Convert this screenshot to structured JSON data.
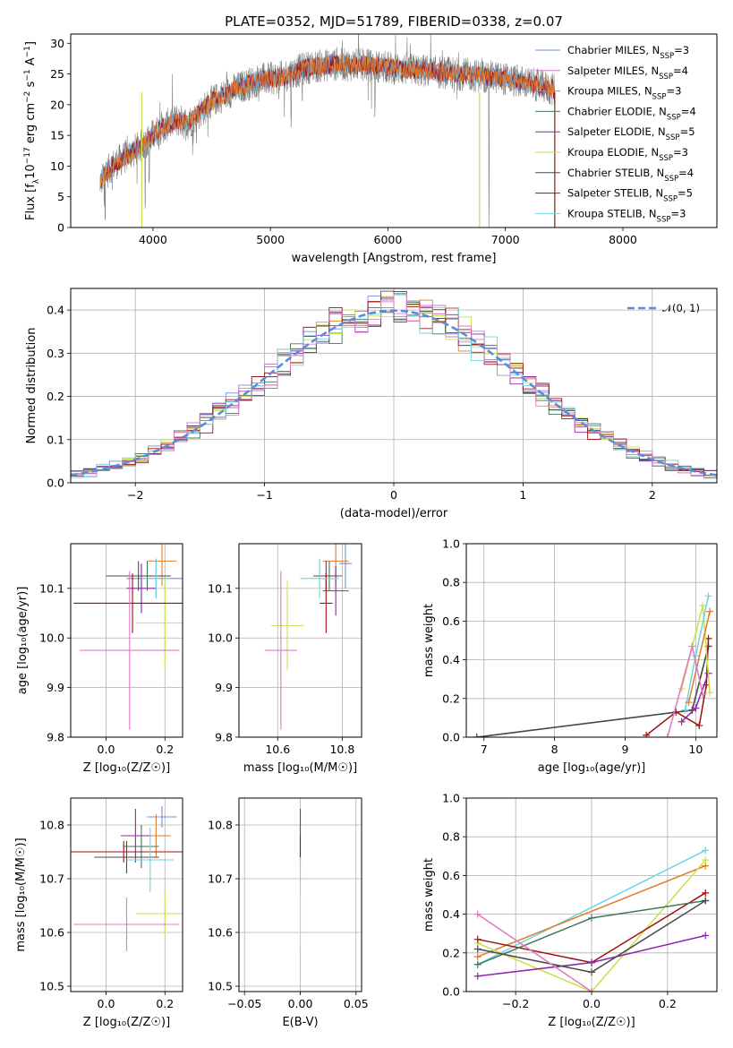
{
  "title": "PLATE=0352, MJD=51789, FIBERID=0338, z=0.07",
  "colors": {
    "Chabrier MILES": "#6f8fd9",
    "Salpeter MILES": "#c97fc7",
    "Kroupa MILES": "#e07c28",
    "Chabrier ELODIE": "#3f7a58",
    "Salpeter ELODIE": "#8e24aa",
    "Kroupa ELODIE": "#c6e24a",
    "Chabrier STELIB": "#4a4a4a",
    "Salpeter STELIB": "#a01010",
    "Kroupa STELIB": "#6fd3df",
    "pink": "#e377c2",
    "gauss": "#5b8dd9",
    "spectrum": "#7f7f7f"
  },
  "chart_data": [
    {
      "id": "spectrum",
      "type": "line",
      "xlabel": "wavelength [Angstrom, rest frame]",
      "ylabel": "Flux [f",
      "ylabel_parts": [
        "Flux [f",
        "λ",
        "10",
        "−17",
        " erg cm",
        "−2",
        " s",
        "−1",
        " A",
        "−1",
        "]"
      ],
      "xlim": [
        3300,
        8800
      ],
      "ylim": [
        0,
        31.5
      ],
      "xticks": [
        4000,
        5000,
        6000,
        7000,
        8000
      ],
      "yticks": [
        0,
        5,
        10,
        15,
        20,
        25,
        30
      ],
      "legend_position": "right",
      "series": [
        {
          "name": "Chabrier MILES",
          "sub": "SSP",
          "n": "3"
        },
        {
          "name": "Salpeter MILES",
          "sub": "SSP",
          "n": "4"
        },
        {
          "name": "Kroupa MILES",
          "sub": "SSP",
          "n": "3"
        },
        {
          "name": "Chabrier ELODIE",
          "sub": "SSP",
          "n": "4"
        },
        {
          "name": "Salpeter ELODIE",
          "sub": "SSP",
          "n": "5"
        },
        {
          "name": "Kroupa ELODIE",
          "sub": "SSP",
          "n": "3"
        },
        {
          "name": "Chabrier STELIB",
          "sub": "SSP",
          "n": "4"
        },
        {
          "name": "Salpeter STELIB",
          "sub": "SSP",
          "n": "5"
        },
        {
          "name": "Kroupa STELIB",
          "sub": "SSP",
          "n": "3"
        }
      ],
      "continuum": {
        "x": [
          3550,
          3650,
          3800,
          3950,
          4050,
          4200,
          4300,
          4500,
          4700,
          4900,
          5100,
          5300,
          5500,
          5800,
          6000,
          6300,
          6600,
          6900,
          7200,
          7400
        ],
        "y": [
          7.5,
          10,
          12,
          14,
          16,
          17.5,
          17,
          20.5,
          22.5,
          24,
          24.5,
          26,
          26.5,
          26.5,
          26,
          25.5,
          25,
          24.5,
          23.5,
          22.5
        ]
      }
    },
    {
      "id": "residuals",
      "type": "histogram",
      "xlabel": "(data-model)/error",
      "ylabel": "Normed distribution",
      "xlim": [
        -2.5,
        2.5
      ],
      "ylim": [
        0,
        0.45
      ],
      "xticks": [
        -2,
        -1,
        0,
        1,
        2
      ],
      "xtick_labels": [
        "−2",
        "−1",
        "0",
        "1",
        "2"
      ],
      "yticks": [
        0.0,
        0.1,
        0.2,
        0.3,
        0.4
      ],
      "ytick_labels": [
        "0.0",
        "0.1",
        "0.2",
        "0.3",
        "0.4"
      ],
      "legend": "𝒩(0, 1)",
      "reference_curve": "gaussian mean 0 sigma 1",
      "bin_width": 0.1
    },
    {
      "id": "age_vs_Z",
      "type": "scatter",
      "xlabel": "Z [log₁₀(Z/Z☉)]",
      "ylabel": "age  [log₁₀(age/yr)]",
      "xlim": [
        -0.12,
        0.26
      ],
      "ylim": [
        9.8,
        10.19
      ],
      "xticks": [
        0.0,
        0.2
      ],
      "yticks": [
        9.8,
        9.9,
        10.0,
        10.1
      ],
      "points": [
        {
          "model": "Chabrier MILES",
          "x": 0.17,
          "y": 10.12,
          "xerr": 0.1,
          "yerr": 0.04
        },
        {
          "model": "Kroupa MILES",
          "x": 0.19,
          "y": 10.155,
          "xerr": 0.05,
          "yerr": 0.05
        },
        {
          "model": "Chabrier ELODIE",
          "x": 0.14,
          "y": 10.125,
          "xerr": 0.06,
          "yerr": 0.03
        },
        {
          "model": "Salpeter ELODIE",
          "x": 0.12,
          "y": 10.1,
          "xerr": 0.05,
          "yerr": 0.05
        },
        {
          "model": "Kroupa ELODIE",
          "x": 0.2,
          "y": 10.03,
          "xerr": 0.1,
          "yerr": 0.09
        },
        {
          "model": "Chabrier STELIB",
          "x": 0.11,
          "y": 10.125,
          "xerr": 0.11,
          "yerr": 0.03
        },
        {
          "model": "Salpeter STELIB",
          "x": 0.09,
          "y": 10.07,
          "xerr": 0.2,
          "yerr": 0.06
        },
        {
          "model": "Kroupa STELIB",
          "x": 0.17,
          "y": 10.12,
          "xerr": 0.05,
          "yerr": 0.04
        },
        {
          "model": "pink",
          "x": 0.08,
          "y": 9.975,
          "xerr": 0.17,
          "yerr": 0.16
        }
      ]
    },
    {
      "id": "age_vs_mass",
      "type": "scatter",
      "xlabel": "mass [log₁₀(M/M☉)]",
      "ylabel": "",
      "xlim": [
        10.48,
        10.86
      ],
      "ylim": [
        9.8,
        10.19
      ],
      "xticks": [
        10.6,
        10.8
      ],
      "yticks": [
        9.8,
        9.9,
        10.0,
        10.1
      ],
      "points": [
        {
          "model": "Chabrier MILES",
          "x": 10.81,
          "y": 10.15,
          "xerr": 0.02,
          "yerr": 0.05
        },
        {
          "model": "Kroupa MILES",
          "x": 10.78,
          "y": 10.155,
          "xerr": 0.04,
          "yerr": 0.05
        },
        {
          "model": "Chabrier ELODIE",
          "x": 10.76,
          "y": 10.125,
          "xerr": 0.04,
          "yerr": 0.03
        },
        {
          "model": "Salpeter ELODIE",
          "x": 10.78,
          "y": 10.095,
          "xerr": 0.04,
          "yerr": 0.05
        },
        {
          "model": "Kroupa ELODIE",
          "x": 10.63,
          "y": 10.025,
          "xerr": 0.05,
          "yerr": 0.09
        },
        {
          "model": "Chabrier STELIB",
          "x": 10.75,
          "y": 10.125,
          "xerr": 0.04,
          "yerr": 0.03
        },
        {
          "model": "Salpeter STELIB",
          "x": 10.75,
          "y": 10.07,
          "xerr": 0.02,
          "yerr": 0.06
        },
        {
          "model": "Kroupa STELIB",
          "x": 10.73,
          "y": 10.12,
          "xerr": 0.06,
          "yerr": 0.04
        },
        {
          "model": "pink",
          "x": 10.61,
          "y": 9.975,
          "xerr": 0.05,
          "yerr": 0.16
        }
      ]
    },
    {
      "id": "weight_vs_age",
      "type": "line",
      "xlabel": "age  [log₁₀(age/yr)]",
      "ylabel": "mass weight",
      "xlim": [
        6.75,
        10.3
      ],
      "ylim": [
        0,
        1.0
      ],
      "xticks": [
        7,
        8,
        9,
        10
      ],
      "yticks": [
        0.0,
        0.2,
        0.4,
        0.6,
        0.8,
        1.0
      ],
      "series": [
        {
          "model": "Chabrier ELODIE",
          "x": [
            6.9,
            9.95,
            10.18
          ],
          "y": [
            0.0,
            0.14,
            0.47
          ]
        },
        {
          "model": "Chabrier STELIB",
          "x": [
            6.9,
            9.95,
            10.18
          ],
          "y": [
            0.0,
            0.14,
            0.47
          ]
        },
        {
          "model": "Salpeter STELIB",
          "x": [
            9.3,
            9.72,
            10.05,
            10.15,
            10.18
          ],
          "y": [
            0.01,
            0.13,
            0.06,
            0.27,
            0.51
          ]
        },
        {
          "model": "Salpeter ELODIE",
          "x": [
            9.8,
            10.0,
            10.18
          ],
          "y": [
            0.08,
            0.15,
            0.33
          ]
        },
        {
          "model": "Kroupa ELODIE",
          "x": [
            9.8,
            10.1,
            10.2
          ],
          "y": [
            0.25,
            0.68,
            0.23
          ]
        },
        {
          "model": "Kroupa STELIB",
          "x": [
            9.85,
            10.0,
            10.18
          ],
          "y": [
            0.14,
            0.42,
            0.73
          ]
        },
        {
          "model": "Kroupa MILES",
          "x": [
            9.9,
            10.2
          ],
          "y": [
            0.18,
            0.65
          ]
        },
        {
          "model": "pink",
          "x": [
            9.6,
            9.95,
            10.1
          ],
          "y": [
            0.0,
            0.47,
            0.22
          ]
        }
      ]
    },
    {
      "id": "mass_vs_Z",
      "type": "scatter",
      "xlabel": "Z [log₁₀(Z/Z☉)]",
      "ylabel": "mass [log₁₀(M/M☉)]",
      "xlim": [
        -0.12,
        0.26
      ],
      "ylim": [
        10.49,
        10.85
      ],
      "xticks": [
        0.0,
        0.2
      ],
      "yticks": [
        10.5,
        10.6,
        10.7,
        10.8
      ],
      "points": [
        {
          "model": "Chabrier MILES",
          "x": 0.19,
          "y": 10.815,
          "xerr": 0.05,
          "yerr": 0.02
        },
        {
          "model": "Kroupa MILES",
          "x": 0.17,
          "y": 10.78,
          "xerr": 0.05,
          "yerr": 0.04
        },
        {
          "model": "Chabrier ELODIE",
          "x": 0.12,
          "y": 10.76,
          "xerr": 0.06,
          "yerr": 0.04
        },
        {
          "model": "Salpeter ELODIE",
          "x": 0.1,
          "y": 10.78,
          "xerr": 0.05,
          "yerr": 0.05
        },
        {
          "model": "Kroupa ELODIE",
          "x": 0.2,
          "y": 10.635,
          "xerr": 0.1,
          "yerr": 0.04
        },
        {
          "model": "Chabrier STELIB",
          "x": 0.07,
          "y": 10.74,
          "xerr": 0.11,
          "yerr": 0.03
        },
        {
          "model": "Salpeter STELIB",
          "x": 0.06,
          "y": 10.75,
          "xerr": 0.2,
          "yerr": 0.02
        },
        {
          "model": "Kroupa STELIB",
          "x": 0.15,
          "y": 10.735,
          "xerr": 0.08,
          "yerr": 0.06
        },
        {
          "model": "pink",
          "x": 0.07,
          "y": 10.615,
          "xerr": 0.18,
          "yerr": 0.05
        }
      ]
    },
    {
      "id": "mass_vs_EBV",
      "type": "scatter",
      "xlabel": "E(B-V)",
      "ylabel": "",
      "xlim": [
        -0.055,
        0.055
      ],
      "ylim": [
        10.49,
        10.85
      ],
      "xticks": [
        -0.05,
        0.0,
        0.05
      ],
      "xtick_labels": [
        "−0.05",
        "0.00",
        "0.05"
      ],
      "yticks": [
        10.5,
        10.6,
        10.7,
        10.8
      ],
      "points": [
        {
          "model": "Salpeter ELODIE",
          "x": 0.0,
          "y": 10.78,
          "xerr": 0.0,
          "yerr": 0.05
        },
        {
          "model": "Kroupa STELIB",
          "x": 0.0,
          "y": 10.72,
          "xerr": 0.0,
          "yerr": 0.03
        },
        {
          "model": "Kroupa ELODIE",
          "x": 0.0,
          "y": 10.62,
          "xerr": 0.0,
          "yerr": 0.05
        },
        {
          "model": "Salpeter STELIB",
          "x": 0.0,
          "y": 10.76,
          "xerr": 0.0,
          "yerr": 0.02
        }
      ]
    },
    {
      "id": "weight_vs_Z",
      "type": "line",
      "xlabel": "Z [log₁₀(Z/Z☉)]",
      "ylabel": "mass weight",
      "xlim": [
        -0.33,
        0.33
      ],
      "ylim": [
        0,
        1.0
      ],
      "xticks": [
        -0.2,
        0.0,
        0.2
      ],
      "xtick_labels": [
        "−0.2",
        "0.0",
        "0.2"
      ],
      "yticks": [
        0.0,
        0.2,
        0.4,
        0.6,
        0.8,
        1.0
      ],
      "series": [
        {
          "model": "Kroupa STELIB",
          "x": [
            -0.3,
            0.3
          ],
          "y": [
            0.14,
            0.73
          ]
        },
        {
          "model": "Kroupa MILES",
          "x": [
            -0.3,
            0.3
          ],
          "y": [
            0.18,
            0.65
          ]
        },
        {
          "model": "Kroupa ELODIE",
          "x": [
            -0.3,
            0.0,
            0.3
          ],
          "y": [
            0.25,
            0.0,
            0.68
          ]
        },
        {
          "model": "Salpeter STELIB",
          "x": [
            -0.3,
            0.0,
            0.3
          ],
          "y": [
            0.27,
            0.15,
            0.51
          ]
        },
        {
          "model": "Salpeter ELODIE",
          "x": [
            -0.3,
            0.0,
            0.3
          ],
          "y": [
            0.08,
            0.15,
            0.29
          ]
        },
        {
          "model": "Chabrier ELODIE",
          "x": [
            -0.3,
            0.0,
            0.3
          ],
          "y": [
            0.14,
            0.38,
            0.47
          ]
        },
        {
          "model": "Chabrier STELIB",
          "x": [
            -0.3,
            0.0,
            0.3
          ],
          "y": [
            0.22,
            0.1,
            0.47
          ]
        },
        {
          "model": "pink",
          "x": [
            -0.3,
            0.0
          ],
          "y": [
            0.4,
            0.0
          ]
        }
      ]
    }
  ]
}
